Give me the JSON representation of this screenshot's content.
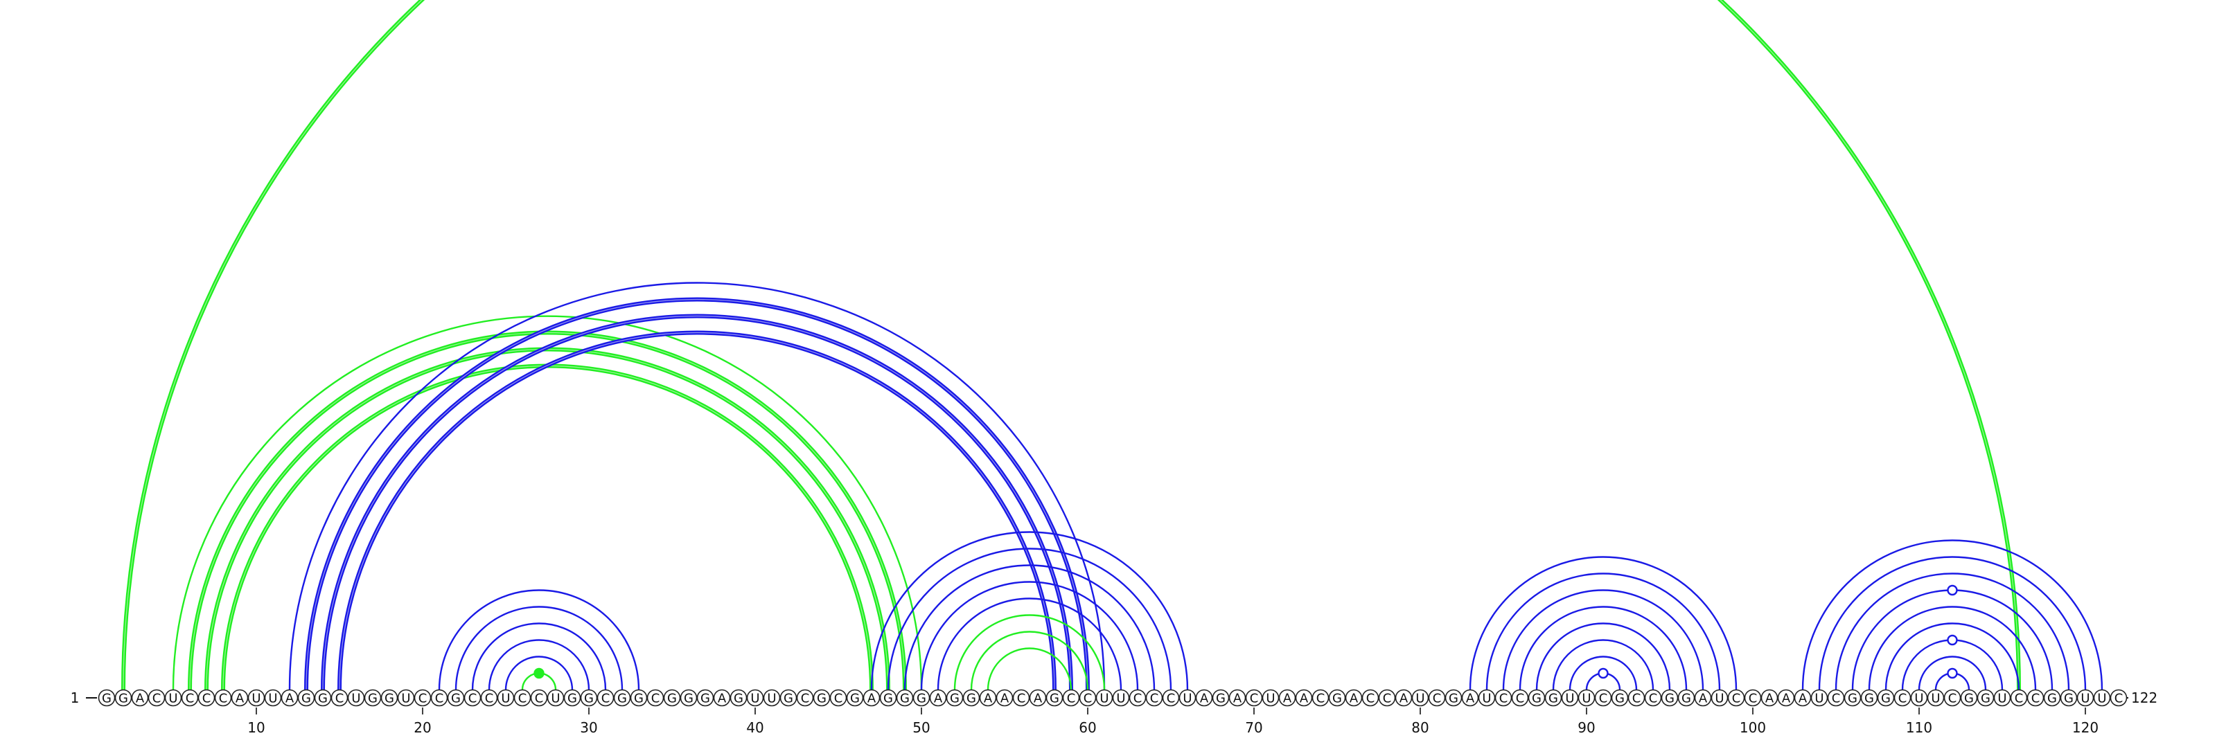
{
  "sequence": {
    "start_label": "1",
    "end_label": "122",
    "bases": "GGACUCCCAUUAGGCUGGUCCGCCUCCUGGCGGCGGGAGUUGCGCGAGGGAGGAACAGCCUUCCCUAGACUAACGACCAUCGAUCCGGUUCGCCGGAUCCAAAUCGGGCUUCGGUCCGGUUC"
  },
  "ruler": {
    "ticks": [
      10,
      20,
      30,
      40,
      50,
      60,
      70,
      80,
      90,
      100,
      110,
      120
    ]
  },
  "colors": {
    "blue": "#1a1ae6",
    "green": "#22ee22",
    "outline": "#222222"
  },
  "arcs": [
    {
      "i": 2,
      "j": 116,
      "color": "green",
      "bold": true
    },
    {
      "i": 5,
      "j": 50,
      "color": "green",
      "bold": false
    },
    {
      "i": 6,
      "j": 49,
      "color": "green",
      "bold": true
    },
    {
      "i": 7,
      "j": 48,
      "color": "green",
      "bold": true
    },
    {
      "i": 8,
      "j": 47,
      "color": "green",
      "bold": true
    },
    {
      "i": 12,
      "j": 61,
      "color": "blue",
      "bold": false
    },
    {
      "i": 13,
      "j": 60,
      "color": "blue",
      "bold": true
    },
    {
      "i": 14,
      "j": 59,
      "color": "blue",
      "bold": true
    },
    {
      "i": 15,
      "j": 58,
      "color": "blue",
      "bold": true
    },
    {
      "i": 21,
      "j": 33,
      "color": "blue",
      "bold": false
    },
    {
      "i": 22,
      "j": 32,
      "color": "blue",
      "bold": false
    },
    {
      "i": 23,
      "j": 31,
      "color": "blue",
      "bold": false
    },
    {
      "i": 24,
      "j": 30,
      "color": "blue",
      "bold": false
    },
    {
      "i": 25,
      "j": 29,
      "color": "blue",
      "bold": false
    },
    {
      "i": 26,
      "j": 28,
      "color": "green",
      "bold": false
    },
    {
      "i": 47,
      "j": 66,
      "color": "blue",
      "bold": false
    },
    {
      "i": 48,
      "j": 65,
      "color": "blue",
      "bold": false
    },
    {
      "i": 49,
      "j": 64,
      "color": "blue",
      "bold": false
    },
    {
      "i": 50,
      "j": 63,
      "color": "blue",
      "bold": false
    },
    {
      "i": 51,
      "j": 62,
      "color": "blue",
      "bold": false
    },
    {
      "i": 52,
      "j": 61,
      "color": "green",
      "bold": false
    },
    {
      "i": 53,
      "j": 60,
      "color": "green",
      "bold": false
    },
    {
      "i": 54,
      "j": 59,
      "color": "green",
      "bold": false
    },
    {
      "i": 83,
      "j": 99,
      "color": "blue",
      "bold": false
    },
    {
      "i": 84,
      "j": 98,
      "color": "blue",
      "bold": false
    },
    {
      "i": 85,
      "j": 97,
      "color": "blue",
      "bold": false
    },
    {
      "i": 86,
      "j": 96,
      "color": "blue",
      "bold": false
    },
    {
      "i": 87,
      "j": 95,
      "color": "blue",
      "bold": false
    },
    {
      "i": 88,
      "j": 94,
      "color": "blue",
      "bold": false
    },
    {
      "i": 89,
      "j": 93,
      "color": "blue",
      "bold": false
    },
    {
      "i": 90,
      "j": 92,
      "color": "blue",
      "bold": false
    },
    {
      "i": 103,
      "j": 121,
      "color": "blue",
      "bold": false
    },
    {
      "i": 104,
      "j": 120,
      "color": "blue",
      "bold": false
    },
    {
      "i": 105,
      "j": 119,
      "color": "blue",
      "bold": false
    },
    {
      "i": 106,
      "j": 118,
      "color": "blue",
      "bold": false
    },
    {
      "i": 107,
      "j": 117,
      "color": "blue",
      "bold": false
    },
    {
      "i": 108,
      "j": 116,
      "color": "blue",
      "bold": false
    },
    {
      "i": 109,
      "j": 115,
      "color": "blue",
      "bold": false
    },
    {
      "i": 110,
      "j": 114,
      "color": "blue",
      "bold": false
    },
    {
      "i": 111,
      "j": 113,
      "color": "blue",
      "bold": false
    }
  ],
  "markers": [
    {
      "i": 26,
      "j": 28,
      "style": "filled",
      "color": "green"
    },
    {
      "i": 90,
      "j": 92,
      "style": "open",
      "color": "blue"
    },
    {
      "i": 111,
      "j": 113,
      "style": "open",
      "color": "blue"
    },
    {
      "i": 109,
      "j": 115,
      "style": "open",
      "color": "blue"
    },
    {
      "i": 106,
      "j": 118,
      "style": "open",
      "color": "blue"
    }
  ]
}
